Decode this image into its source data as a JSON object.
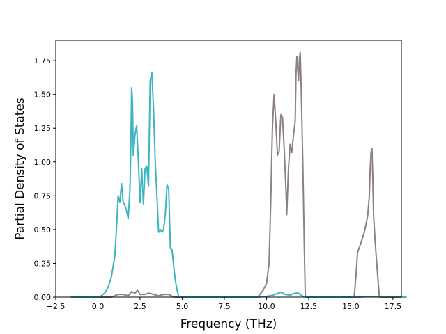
{
  "chart_data": {
    "type": "line",
    "title": "",
    "xlabel": "Frequency (THz)",
    "ylabel": "Partial Density of States",
    "xlim": [
      -2.5,
      18.0
    ],
    "ylim": [
      0.0,
      1.9
    ],
    "xticks": [
      -2.5,
      0.0,
      2.5,
      5.0,
      7.5,
      10.0,
      12.5,
      15.0,
      17.5
    ],
    "xtick_labels": [
      "−2.5",
      "0.0",
      "2.5",
      "5.0",
      "7.5",
      "10.0",
      "12.5",
      "15.0",
      "17.5"
    ],
    "yticks": [
      0.0,
      0.25,
      0.5,
      0.75,
      1.0,
      1.25,
      1.5,
      1.75
    ],
    "ytick_labels": [
      "0.00",
      "0.25",
      "0.50",
      "0.75",
      "1.00",
      "1.25",
      "1.50",
      "1.75"
    ],
    "grid": false,
    "legend": "none",
    "series": [
      {
        "color": "#8c7f86",
        "points": [
          [
            -1.6,
            0.0
          ],
          [
            0.0,
            0.0
          ],
          [
            0.8,
            0.0
          ],
          [
            1.0,
            0.01
          ],
          [
            1.2,
            0.02
          ],
          [
            1.5,
            0.02
          ],
          [
            1.8,
            0.01
          ],
          [
            2.0,
            0.04
          ],
          [
            2.2,
            0.03
          ],
          [
            2.35,
            0.05
          ],
          [
            2.5,
            0.02
          ],
          [
            2.8,
            0.02
          ],
          [
            3.0,
            0.03
          ],
          [
            3.3,
            0.02
          ],
          [
            3.6,
            0.01
          ],
          [
            3.9,
            0.02
          ],
          [
            4.2,
            0.02
          ],
          [
            4.5,
            0.0
          ],
          [
            9.5,
            0.0
          ],
          [
            9.6,
            0.02
          ],
          [
            9.8,
            0.05
          ],
          [
            10.0,
            0.1
          ],
          [
            10.15,
            0.25
          ],
          [
            10.25,
            0.7
          ],
          [
            10.35,
            1.25
          ],
          [
            10.45,
            1.5
          ],
          [
            10.55,
            1.3
          ],
          [
            10.65,
            1.05
          ],
          [
            10.75,
            1.08
          ],
          [
            10.85,
            1.35
          ],
          [
            10.95,
            1.33
          ],
          [
            11.05,
            1.1
          ],
          [
            11.15,
            0.8
          ],
          [
            11.2,
            0.61
          ],
          [
            11.3,
            0.95
          ],
          [
            11.4,
            1.13
          ],
          [
            11.5,
            1.07
          ],
          [
            11.6,
            1.2
          ],
          [
            11.7,
            1.3
          ],
          [
            11.75,
            1.65
          ],
          [
            11.8,
            1.78
          ],
          [
            11.85,
            1.7
          ],
          [
            11.9,
            1.6
          ],
          [
            11.95,
            1.76
          ],
          [
            12.0,
            1.81
          ],
          [
            12.05,
            1.6
          ],
          [
            12.15,
            1.0
          ],
          [
            12.25,
            0.3
          ],
          [
            12.3,
            0.0
          ],
          [
            15.2,
            0.0
          ],
          [
            15.3,
            0.15
          ],
          [
            15.4,
            0.33
          ],
          [
            15.6,
            0.4
          ],
          [
            15.8,
            0.48
          ],
          [
            16.0,
            0.6
          ],
          [
            16.1,
            0.75
          ],
          [
            16.15,
            0.95
          ],
          [
            16.2,
            1.07
          ],
          [
            16.25,
            1.1
          ],
          [
            16.3,
            0.9
          ],
          [
            16.35,
            0.6
          ],
          [
            16.45,
            0.4
          ],
          [
            16.6,
            0.15
          ],
          [
            16.7,
            0.0
          ],
          [
            18.3,
            0.0
          ]
        ]
      },
      {
        "color": "#3bb5c0",
        "points": [
          [
            -1.6,
            0.0
          ],
          [
            0.0,
            0.0
          ],
          [
            0.2,
            0.01
          ],
          [
            0.4,
            0.03
          ],
          [
            0.6,
            0.07
          ],
          [
            0.8,
            0.15
          ],
          [
            1.0,
            0.3
          ],
          [
            1.1,
            0.5
          ],
          [
            1.2,
            0.75
          ],
          [
            1.3,
            0.7
          ],
          [
            1.4,
            0.84
          ],
          [
            1.5,
            0.7
          ],
          [
            1.6,
            0.68
          ],
          [
            1.7,
            0.64
          ],
          [
            1.8,
            0.58
          ],
          [
            1.9,
            0.8
          ],
          [
            1.95,
            1.1
          ],
          [
            2.0,
            1.55
          ],
          [
            2.05,
            1.45
          ],
          [
            2.1,
            1.05
          ],
          [
            2.2,
            1.2
          ],
          [
            2.3,
            1.27
          ],
          [
            2.4,
            1.0
          ],
          [
            2.5,
            0.7
          ],
          [
            2.6,
            0.95
          ],
          [
            2.7,
            0.69
          ],
          [
            2.8,
            0.95
          ],
          [
            2.9,
            0.97
          ],
          [
            3.0,
            0.82
          ],
          [
            3.1,
            1.6
          ],
          [
            3.2,
            1.66
          ],
          [
            3.3,
            1.4
          ],
          [
            3.4,
            1.0
          ],
          [
            3.5,
            0.75
          ],
          [
            3.6,
            0.48
          ],
          [
            3.7,
            0.5
          ],
          [
            3.8,
            0.48
          ],
          [
            3.9,
            0.5
          ],
          [
            4.0,
            0.62
          ],
          [
            4.1,
            0.83
          ],
          [
            4.2,
            0.8
          ],
          [
            4.3,
            0.36
          ],
          [
            4.4,
            0.35
          ],
          [
            4.5,
            0.22
          ],
          [
            4.6,
            0.12
          ],
          [
            4.7,
            0.05
          ],
          [
            4.8,
            0.0
          ],
          [
            9.5,
            0.0
          ],
          [
            10.0,
            0.005
          ],
          [
            10.4,
            0.015
          ],
          [
            10.7,
            0.03
          ],
          [
            10.9,
            0.035
          ],
          [
            11.1,
            0.02
          ],
          [
            11.4,
            0.015
          ],
          [
            11.7,
            0.03
          ],
          [
            11.9,
            0.03
          ],
          [
            12.1,
            0.01
          ],
          [
            12.3,
            0.0
          ],
          [
            15.5,
            0.0
          ],
          [
            16.2,
            0.005
          ],
          [
            18.3,
            0.0
          ]
        ]
      }
    ]
  }
}
